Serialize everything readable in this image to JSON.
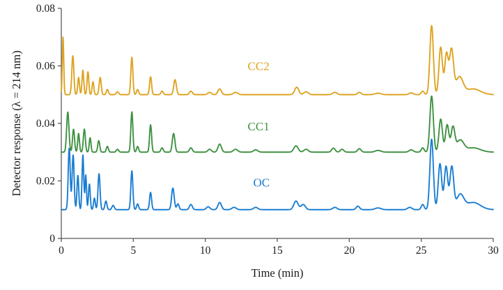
{
  "chart_data": {
    "type": "line",
    "title": "",
    "xlabel": "Time (min)",
    "ylabel": "Detector response (λ = 214 nm)",
    "xlim": [
      0,
      30
    ],
    "ylim": [
      0,
      0.08
    ],
    "grid": false,
    "legend": "inline-colored-labels",
    "axis_color": "#595959",
    "tick_text_color": "#1a1a1a",
    "xticks": [
      {
        "value": 0,
        "label": "0"
      },
      {
        "value": 5,
        "label": "5"
      },
      {
        "value": 10,
        "label": "10"
      },
      {
        "value": 15,
        "label": "15"
      },
      {
        "value": 20,
        "label": "20"
      },
      {
        "value": 25,
        "label": "25"
      },
      {
        "value": 30,
        "label": "30"
      }
    ],
    "yticks": [
      {
        "value": 0,
        "label": "0"
      },
      {
        "value": 0.02,
        "label": "0.02"
      },
      {
        "value": 0.04,
        "label": "0.04"
      },
      {
        "value": 0.06,
        "label": "0.06"
      },
      {
        "value": 0.08,
        "label": "0.08"
      }
    ],
    "series": [
      {
        "name": "OC",
        "color": "#1A7DD2",
        "baseline": 0.01,
        "label_pos": [
          13.9,
          0.0195
        ],
        "peaks": [
          [
            0.55,
            0.0215,
            0.07
          ],
          [
            0.82,
            0.019,
            0.07
          ],
          [
            1.15,
            0.012,
            0.06
          ],
          [
            1.5,
            0.019,
            0.06
          ],
          [
            1.7,
            0.012,
            0.05
          ],
          [
            1.95,
            0.009,
            0.06
          ],
          [
            2.3,
            0.004,
            0.06
          ],
          [
            2.62,
            0.0125,
            0.07
          ],
          [
            3.1,
            0.003,
            0.07
          ],
          [
            3.6,
            0.0015,
            0.08
          ],
          [
            4.9,
            0.0135,
            0.07
          ],
          [
            5.3,
            0.002,
            0.07
          ],
          [
            6.2,
            0.006,
            0.07
          ],
          [
            7.75,
            0.0075,
            0.09
          ],
          [
            8.1,
            0.002,
            0.08
          ],
          [
            9.0,
            0.0018,
            0.1
          ],
          [
            10.2,
            0.001,
            0.12
          ],
          [
            11.0,
            0.0025,
            0.12
          ],
          [
            12.0,
            0.0008,
            0.15
          ],
          [
            13.5,
            0.0008,
            0.15
          ],
          [
            16.3,
            0.003,
            0.15
          ],
          [
            16.8,
            0.0018,
            0.15
          ],
          [
            19.0,
            0.0008,
            0.15
          ],
          [
            20.6,
            0.0012,
            0.12
          ],
          [
            22.0,
            0.0006,
            0.2
          ],
          [
            24.2,
            0.0008,
            0.15
          ],
          [
            25.1,
            0.0018,
            0.1
          ],
          [
            25.72,
            0.0245,
            0.12
          ],
          [
            26.3,
            0.016,
            0.12
          ],
          [
            26.72,
            0.015,
            0.12
          ],
          [
            27.12,
            0.0148,
            0.13
          ],
          [
            27.7,
            0.005,
            0.25
          ],
          [
            28.6,
            0.0025,
            0.5
          ]
        ]
      },
      {
        "name": "CC1",
        "color": "#3E9142",
        "baseline": 0.03,
        "label_pos": [
          13.7,
          0.039
        ],
        "peaks": [
          [
            0.45,
            0.014,
            0.08
          ],
          [
            0.85,
            0.008,
            0.07
          ],
          [
            1.2,
            0.0065,
            0.06
          ],
          [
            1.6,
            0.008,
            0.07
          ],
          [
            2.0,
            0.005,
            0.06
          ],
          [
            2.6,
            0.004,
            0.07
          ],
          [
            3.2,
            0.002,
            0.07
          ],
          [
            3.9,
            0.001,
            0.08
          ],
          [
            4.9,
            0.014,
            0.07
          ],
          [
            5.3,
            0.002,
            0.07
          ],
          [
            6.2,
            0.0095,
            0.07
          ],
          [
            7.0,
            0.0015,
            0.08
          ],
          [
            7.8,
            0.0065,
            0.09
          ],
          [
            9.0,
            0.0015,
            0.1
          ],
          [
            10.3,
            0.001,
            0.12
          ],
          [
            11.0,
            0.0028,
            0.12
          ],
          [
            12.1,
            0.001,
            0.15
          ],
          [
            13.5,
            0.0008,
            0.15
          ],
          [
            16.3,
            0.0022,
            0.15
          ],
          [
            17.0,
            0.001,
            0.15
          ],
          [
            18.9,
            0.0014,
            0.12
          ],
          [
            19.5,
            0.001,
            0.12
          ],
          [
            20.7,
            0.0012,
            0.12
          ],
          [
            22.0,
            0.0006,
            0.2
          ],
          [
            24.3,
            0.0008,
            0.15
          ],
          [
            25.1,
            0.0015,
            0.1
          ],
          [
            25.72,
            0.0195,
            0.12
          ],
          [
            26.35,
            0.0115,
            0.12
          ],
          [
            26.8,
            0.0095,
            0.12
          ],
          [
            27.2,
            0.0085,
            0.13
          ],
          [
            27.7,
            0.004,
            0.25
          ],
          [
            28.6,
            0.0015,
            0.5
          ]
        ]
      },
      {
        "name": "CC2",
        "color": "#DEA321",
        "baseline": 0.05,
        "label_pos": [
          13.7,
          0.06
        ],
        "peaks": [
          [
            0.12,
            0.02,
            0.05
          ],
          [
            0.8,
            0.0135,
            0.07
          ],
          [
            1.2,
            0.006,
            0.06
          ],
          [
            1.5,
            0.0085,
            0.06
          ],
          [
            1.85,
            0.008,
            0.06
          ],
          [
            2.2,
            0.0045,
            0.06
          ],
          [
            2.7,
            0.006,
            0.07
          ],
          [
            3.2,
            0.0018,
            0.07
          ],
          [
            3.9,
            0.001,
            0.08
          ],
          [
            4.9,
            0.013,
            0.07
          ],
          [
            5.3,
            0.0018,
            0.07
          ],
          [
            6.2,
            0.0062,
            0.07
          ],
          [
            7.0,
            0.0012,
            0.08
          ],
          [
            7.9,
            0.0052,
            0.09
          ],
          [
            9.0,
            0.0012,
            0.1
          ],
          [
            10.3,
            0.0008,
            0.12
          ],
          [
            11.0,
            0.002,
            0.12
          ],
          [
            12.1,
            0.0008,
            0.15
          ],
          [
            16.35,
            0.0026,
            0.14
          ],
          [
            17.0,
            0.001,
            0.15
          ],
          [
            19.0,
            0.0008,
            0.15
          ],
          [
            20.7,
            0.0008,
            0.12
          ],
          [
            22.0,
            0.0005,
            0.2
          ],
          [
            24.3,
            0.0006,
            0.15
          ],
          [
            25.1,
            0.0012,
            0.1
          ],
          [
            25.72,
            0.024,
            0.12
          ],
          [
            26.35,
            0.0165,
            0.12
          ],
          [
            26.75,
            0.014,
            0.12
          ],
          [
            27.1,
            0.0155,
            0.14
          ],
          [
            27.65,
            0.006,
            0.25
          ],
          [
            28.6,
            0.002,
            0.5
          ]
        ]
      }
    ]
  }
}
